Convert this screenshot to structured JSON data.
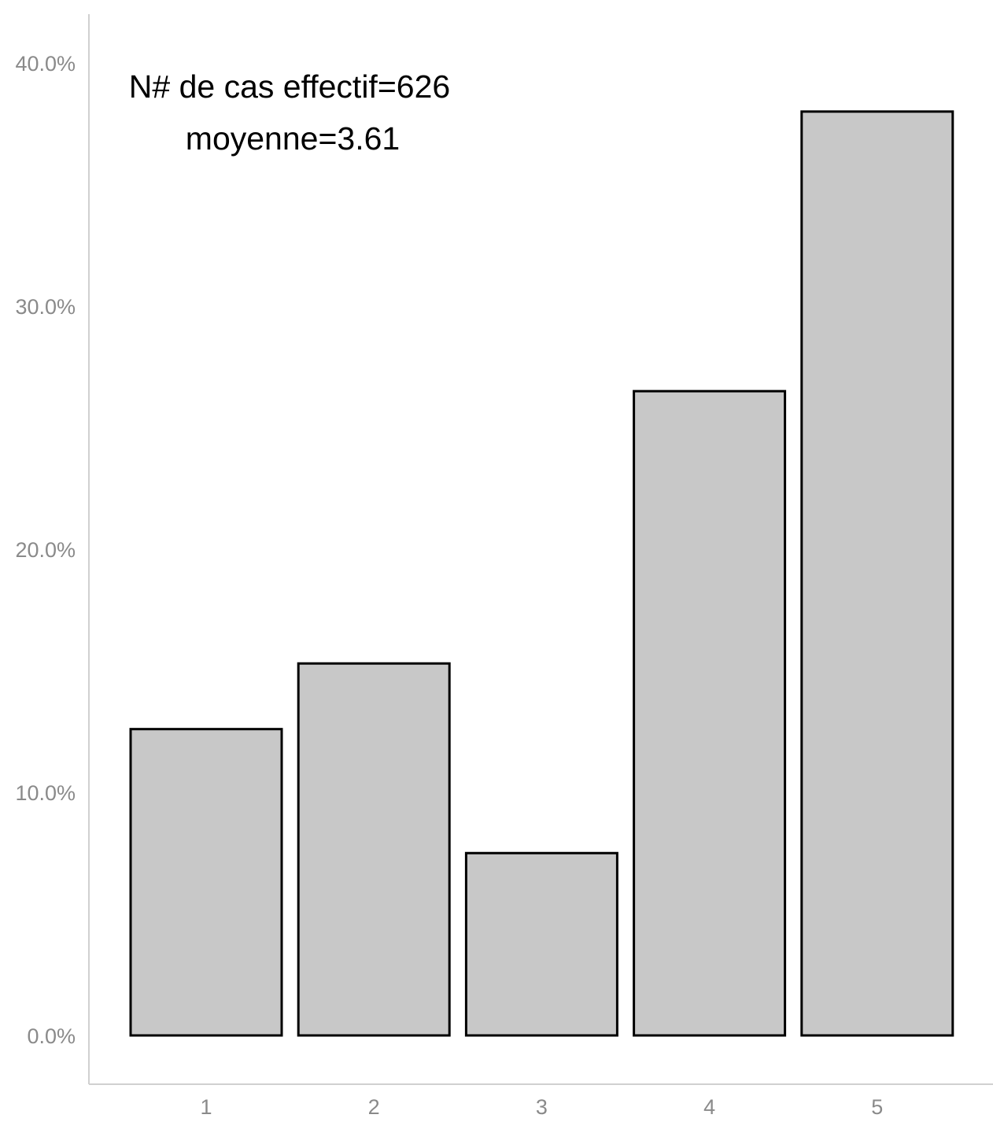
{
  "chart_data": {
    "type": "bar",
    "categories": [
      "1",
      "2",
      "3",
      "4",
      "5"
    ],
    "values": [
      12.6,
      15.3,
      7.5,
      26.5,
      38.0
    ],
    "y_unit": "%",
    "ylim": [
      0,
      40
    ],
    "yticks": [
      "0.0%",
      "10.0%",
      "20.0%",
      "30.0%",
      "40.0%"
    ],
    "ytick_values": [
      0,
      10,
      20,
      30,
      40
    ],
    "annotations": [
      "N# de cas effectif=626",
      "moyenne=3.61"
    ],
    "bar_fill": "#c8c8c8",
    "bar_stroke": "#000000",
    "axis_color": "#d0d0d0",
    "tick_color": "#8a8a8a",
    "grid": false
  }
}
